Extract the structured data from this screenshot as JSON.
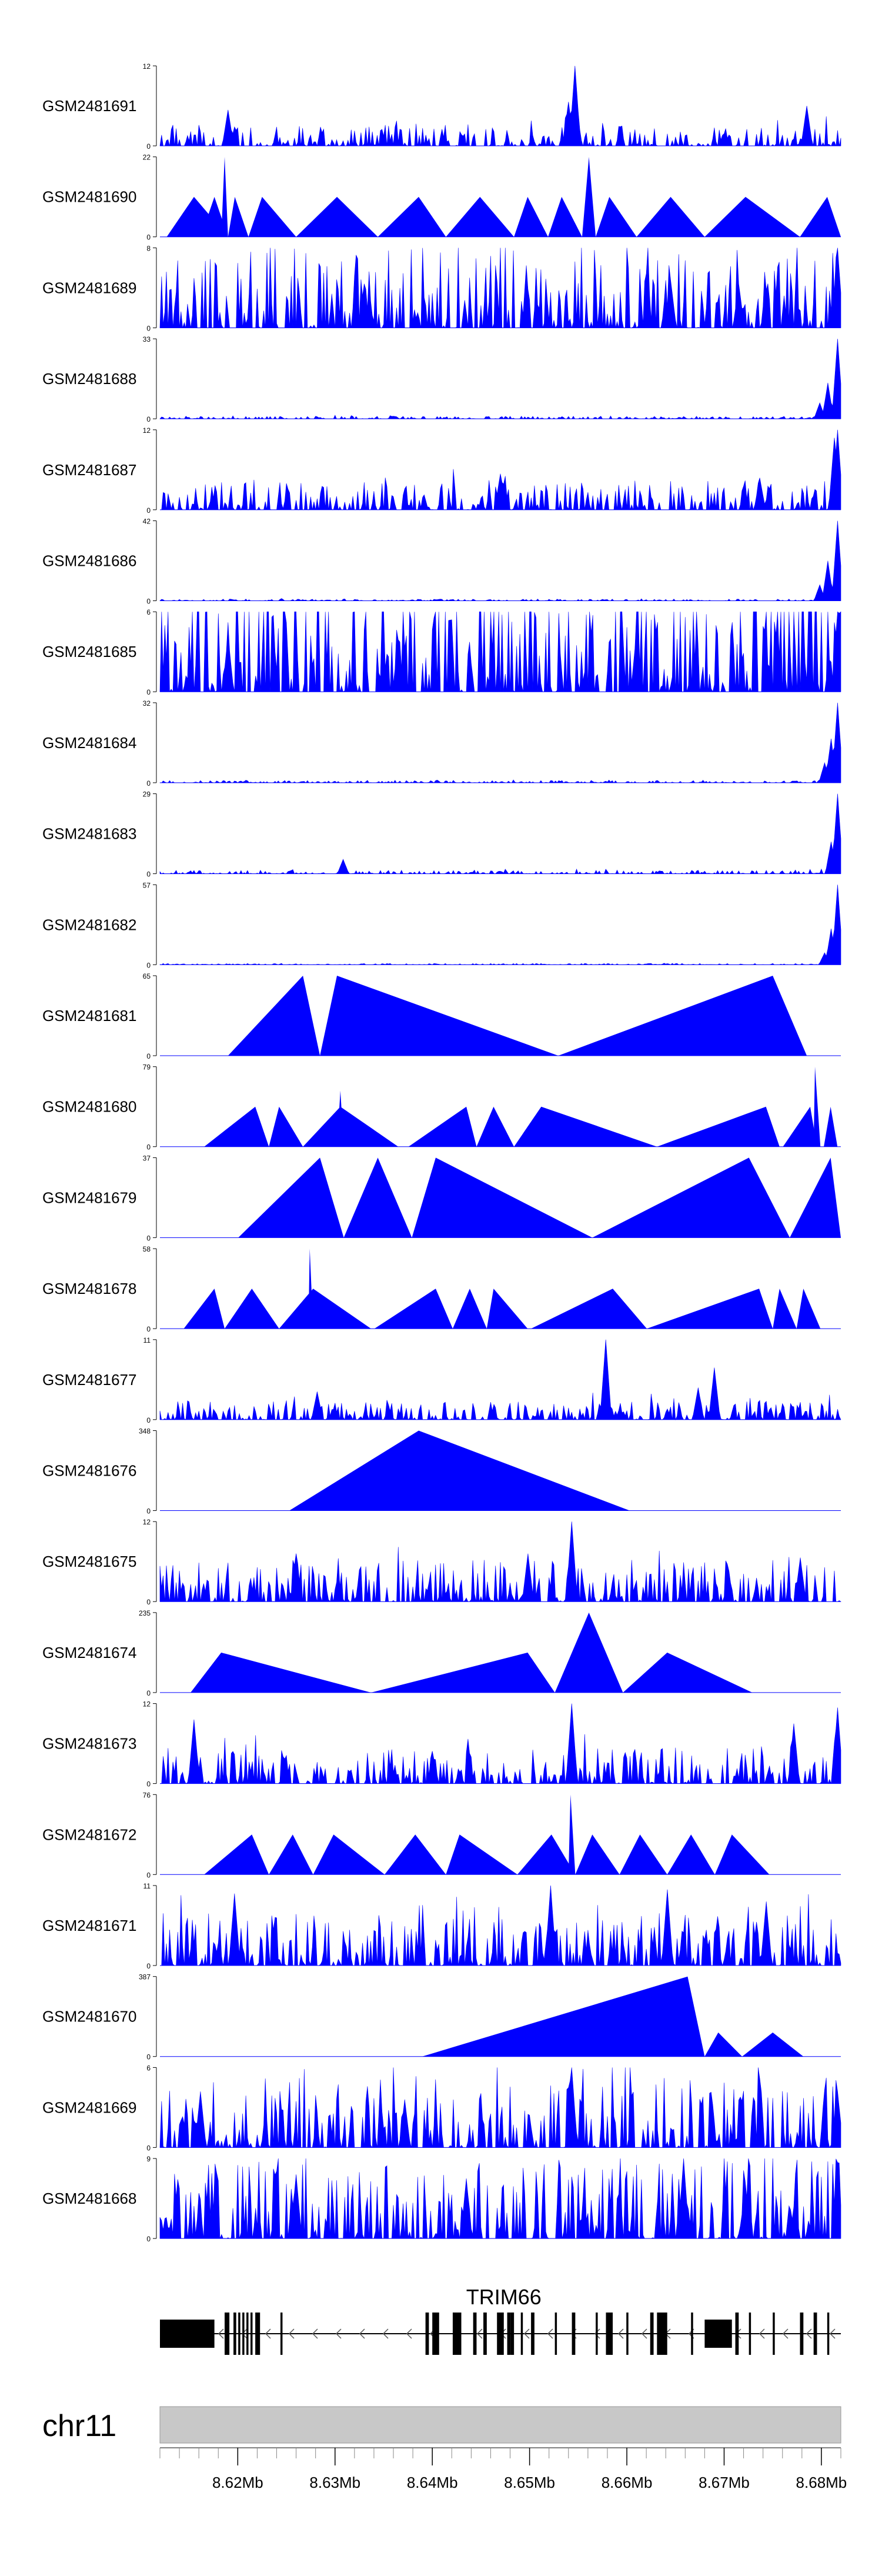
{
  "chart_data": {
    "type": "area",
    "tracks": [
      {
        "name": "GSM2481691",
        "ymax": 12,
        "ymin": 0,
        "pattern": "noise",
        "base": 1.8,
        "spikes": [
          [
            0.61,
            1.0
          ],
          [
            0.6,
            0.55
          ],
          [
            0.95,
            0.5
          ],
          [
            0.1,
            0.45
          ]
        ],
        "start": 0.0,
        "end": 1.0
      },
      {
        "name": "GSM2481690",
        "ymax": 22,
        "ymin": 0,
        "pattern": "triangles",
        "triangles": [
          [
            0.01,
            0.05,
            0.1,
            0.5
          ],
          [
            0.06,
            0.08,
            0.1,
            0.5
          ],
          [
            0.09,
            0.095,
            0.1,
            1.0
          ],
          [
            0.1,
            0.11,
            0.13,
            0.5
          ],
          [
            0.13,
            0.15,
            0.2,
            0.5
          ],
          [
            0.2,
            0.26,
            0.32,
            0.5
          ],
          [
            0.32,
            0.38,
            0.42,
            0.5
          ],
          [
            0.42,
            0.47,
            0.52,
            0.5
          ],
          [
            0.52,
            0.54,
            0.57,
            0.5
          ],
          [
            0.57,
            0.59,
            0.62,
            0.5
          ],
          [
            0.62,
            0.63,
            0.64,
            1.0
          ],
          [
            0.64,
            0.66,
            0.7,
            0.5
          ],
          [
            0.7,
            0.75,
            0.8,
            0.5
          ],
          [
            0.8,
            0.86,
            0.94,
            0.5
          ],
          [
            0.94,
            0.98,
            1.0,
            0.5
          ]
        ],
        "start": 0.0,
        "end": 1.0
      },
      {
        "name": "GSM2481689",
        "ymax": 8,
        "ymin": 0,
        "pattern": "noise",
        "base": 4.5,
        "spikes": [
          [
            0.995,
            1.0
          ],
          [
            0.75,
            0.6
          ],
          [
            0.3,
            0.55
          ],
          [
            0.85,
            0.55
          ]
        ],
        "start": 0.0,
        "end": 1.0
      },
      {
        "name": "GSM2481688",
        "ymax": 33,
        "ymin": 0,
        "pattern": "noise",
        "base": 0.6,
        "spikes": [
          [
            0.995,
            1.0
          ],
          [
            0.98,
            0.45
          ],
          [
            0.97,
            0.2
          ]
        ],
        "start": 0.0,
        "end": 1.0
      },
      {
        "name": "GSM2481687",
        "ymax": 12,
        "ymin": 0,
        "pattern": "noise",
        "base": 2.5,
        "spikes": [
          [
            0.995,
            1.0
          ],
          [
            0.99,
            0.9
          ],
          [
            0.5,
            0.45
          ],
          [
            0.88,
            0.4
          ]
        ],
        "start": 0.0,
        "end": 1.0
      },
      {
        "name": "GSM2481686",
        "ymax": 42,
        "ymin": 0,
        "pattern": "noise",
        "base": 0.5,
        "spikes": [
          [
            0.995,
            1.0
          ],
          [
            0.98,
            0.5
          ],
          [
            0.97,
            0.2
          ]
        ],
        "start": 0.0,
        "end": 1.0
      },
      {
        "name": "GSM2481685",
        "ymax": 6,
        "ymin": 0,
        "pattern": "noise",
        "base": 5.0,
        "spikes": [
          [
            0.995,
            1.0
          ],
          [
            0.1,
            0.7
          ],
          [
            0.7,
            0.75
          ],
          [
            0.35,
            0.65
          ]
        ],
        "start": 0.0,
        "end": 1.0
      },
      {
        "name": "GSM2481684",
        "ymax": 32,
        "ymin": 0,
        "pattern": "noise",
        "base": 0.5,
        "spikes": [
          [
            0.995,
            1.0
          ],
          [
            0.985,
            0.55
          ],
          [
            0.975,
            0.25
          ]
        ],
        "start": 0.0,
        "end": 1.0
      },
      {
        "name": "GSM2481683",
        "ymax": 29,
        "ymin": 0,
        "pattern": "noise",
        "base": 0.7,
        "spikes": [
          [
            0.995,
            1.0
          ],
          [
            0.985,
            0.4
          ],
          [
            0.27,
            0.18
          ]
        ],
        "start": 0.0,
        "end": 1.0
      },
      {
        "name": "GSM2481682",
        "ymax": 57,
        "ymin": 0,
        "pattern": "noise",
        "base": 0.5,
        "spikes": [
          [
            0.995,
            1.0
          ],
          [
            0.985,
            0.45
          ],
          [
            0.975,
            0.15
          ]
        ],
        "start": 0.0,
        "end": 1.0
      },
      {
        "name": "GSM2481681",
        "ymax": 65,
        "ymin": 0,
        "pattern": "triangles",
        "triangles": [
          [
            0.1,
            0.21,
            0.235,
            1.0
          ],
          [
            0.235,
            0.26,
            0.585,
            1.0
          ],
          [
            0.585,
            0.9,
            0.95,
            1.0
          ]
        ],
        "start": 0.0,
        "end": 1.0
      },
      {
        "name": "GSM2481680",
        "ymax": 79,
        "ymin": 0,
        "pattern": "triangles",
        "triangles": [
          [
            0.065,
            0.14,
            0.16,
            0.5
          ],
          [
            0.16,
            0.175,
            0.21,
            0.5
          ],
          [
            0.21,
            0.265,
            0.35,
            0.5
          ],
          [
            0.26,
            0.265,
            0.27,
            0.7
          ],
          [
            0.365,
            0.45,
            0.465,
            0.5
          ],
          [
            0.465,
            0.49,
            0.52,
            0.5
          ],
          [
            0.52,
            0.56,
            0.73,
            0.5
          ],
          [
            0.73,
            0.89,
            0.91,
            0.5
          ],
          [
            0.915,
            0.955,
            0.965,
            0.5
          ],
          [
            0.96,
            0.962,
            0.97,
            1.0
          ],
          [
            0.975,
            0.985,
            0.995,
            0.5
          ]
        ],
        "start": 0.0,
        "end": 1.0
      },
      {
        "name": "GSM2481679",
        "ymax": 37,
        "ymin": 0,
        "pattern": "triangles",
        "triangles": [
          [
            0.115,
            0.235,
            0.27,
            1.0
          ],
          [
            0.27,
            0.32,
            0.37,
            1.0
          ],
          [
            0.37,
            0.405,
            0.635,
            1.0
          ],
          [
            0.635,
            0.865,
            0.925,
            1.0
          ],
          [
            0.925,
            0.985,
            1.0,
            1.0
          ],
          [
            0.86,
            0.865,
            0.87,
            1.0
          ]
        ],
        "start": 0.0,
        "end": 1.0
      },
      {
        "name": "GSM2481678",
        "ymax": 58,
        "ymin": 0,
        "pattern": "triangles",
        "triangles": [
          [
            0.035,
            0.08,
            0.095,
            0.5
          ],
          [
            0.095,
            0.135,
            0.175,
            0.5
          ],
          [
            0.175,
            0.225,
            0.31,
            0.5
          ],
          [
            0.218,
            0.22,
            0.225,
            1.0
          ],
          [
            0.315,
            0.405,
            0.43,
            0.5
          ],
          [
            0.43,
            0.455,
            0.48,
            0.5
          ],
          [
            0.48,
            0.49,
            0.54,
            0.5
          ],
          [
            0.545,
            0.665,
            0.715,
            0.5
          ],
          [
            0.715,
            0.88,
            0.9,
            0.5
          ],
          [
            0.9,
            0.91,
            0.935,
            0.5
          ],
          [
            0.935,
            0.945,
            0.97,
            0.5
          ]
        ],
        "start": 0.0,
        "end": 1.0
      },
      {
        "name": "GSM2481677",
        "ymax": 11,
        "ymin": 0,
        "pattern": "noise",
        "base": 1.5,
        "spikes": [
          [
            0.655,
            1.0
          ],
          [
            0.815,
            0.65
          ],
          [
            0.23,
            0.35
          ],
          [
            0.79,
            0.4
          ]
        ],
        "start": 0.0,
        "end": 1.0
      },
      {
        "name": "GSM2481676",
        "ymax": 348,
        "ymin": 0,
        "pattern": "triangles",
        "triangles": [
          [
            0.19,
            0.38,
            0.69,
            1.0
          ]
        ],
        "start": 0.0,
        "end": 1.0
      },
      {
        "name": "GSM2481675",
        "ymax": 12,
        "ymin": 0,
        "pattern": "noise",
        "base": 3.5,
        "spikes": [
          [
            0.605,
            1.0
          ],
          [
            0.2,
            0.6
          ],
          [
            0.54,
            0.6
          ],
          [
            0.94,
            0.55
          ]
        ],
        "start": 0.0,
        "end": 1.0
      },
      {
        "name": "GSM2481674",
        "ymax": 235,
        "ymin": 0,
        "pattern": "triangles",
        "triangles": [
          [
            0.045,
            0.09,
            0.31,
            0.5
          ],
          [
            0.31,
            0.54,
            0.58,
            0.5
          ],
          [
            0.58,
            0.63,
            0.68,
            1.0
          ],
          [
            0.68,
            0.745,
            0.87,
            0.5
          ]
        ],
        "start": 0.0,
        "end": 1.0
      },
      {
        "name": "GSM2481673",
        "ymax": 12,
        "ymin": 0,
        "pattern": "noise",
        "base": 3.0,
        "spikes": [
          [
            0.605,
            1.0
          ],
          [
            0.995,
            0.95
          ],
          [
            0.05,
            0.8
          ],
          [
            0.93,
            0.75
          ]
        ],
        "start": 0.0,
        "end": 1.0
      },
      {
        "name": "GSM2481672",
        "ymax": 76,
        "ymin": 0,
        "pattern": "triangles",
        "triangles": [
          [
            0.065,
            0.135,
            0.16,
            0.5
          ],
          [
            0.16,
            0.195,
            0.225,
            0.5
          ],
          [
            0.225,
            0.255,
            0.33,
            0.5
          ],
          [
            0.33,
            0.375,
            0.42,
            0.5
          ],
          [
            0.42,
            0.44,
            0.525,
            0.5
          ],
          [
            0.525,
            0.575,
            0.61,
            0.5
          ],
          [
            0.6,
            0.603,
            0.61,
            1.0
          ],
          [
            0.61,
            0.635,
            0.675,
            0.5
          ],
          [
            0.675,
            0.705,
            0.745,
            0.5
          ],
          [
            0.745,
            0.78,
            0.815,
            0.5
          ],
          [
            0.815,
            0.84,
            0.895,
            0.5
          ]
        ],
        "start": 0.0,
        "end": 1.0
      },
      {
        "name": "GSM2481671",
        "ymax": 11,
        "ymin": 0,
        "pattern": "noise",
        "base": 4.0,
        "spikes": [
          [
            0.575,
            1.0
          ],
          [
            0.745,
            0.95
          ],
          [
            0.11,
            0.9
          ],
          [
            0.89,
            0.8
          ]
        ],
        "start": 0.0,
        "end": 1.0
      },
      {
        "name": "GSM2481670",
        "ymax": 387,
        "ymin": 0,
        "pattern": "triangles",
        "triangles": [
          [
            0.385,
            0.775,
            0.8,
            1.0
          ],
          [
            0.8,
            0.82,
            0.855,
            0.3
          ],
          [
            0.855,
            0.9,
            0.945,
            0.3
          ]
        ],
        "start": 0.0,
        "end": 1.0
      },
      {
        "name": "GSM2481669",
        "ymax": 6,
        "ymin": 0,
        "pattern": "noise",
        "base": 3.0,
        "spikes": [
          [
            0.605,
            1.0
          ],
          [
            0.995,
            0.7
          ],
          [
            0.06,
            0.7
          ],
          [
            0.36,
            0.6
          ]
        ],
        "start": 0.0,
        "end": 1.0
      },
      {
        "name": "GSM2481668",
        "ymax": 9,
        "ymin": 0,
        "pattern": "noise",
        "base": 5.0,
        "spikes": [
          [
            0.77,
            1.0
          ],
          [
            0.995,
            0.95
          ],
          [
            0.2,
            0.8
          ],
          [
            0.45,
            0.75
          ]
        ],
        "start": 0.0,
        "end": 1.0
      }
    ],
    "gene": {
      "name": "TRIM66",
      "strand": "-",
      "exons": [
        [
          0.0,
          0.08
        ],
        [
          0.095,
          0.102
        ],
        [
          0.108,
          0.112
        ],
        [
          0.115,
          0.118
        ],
        [
          0.121,
          0.124
        ],
        [
          0.127,
          0.13
        ],
        [
          0.133,
          0.136
        ],
        [
          0.14,
          0.147
        ],
        [
          0.177,
          0.18
        ],
        [
          0.39,
          0.395
        ],
        [
          0.4,
          0.41
        ],
        [
          0.43,
          0.44
        ],
        [
          0.44,
          0.44
        ],
        [
          0.46,
          0.465
        ],
        [
          0.475,
          0.48
        ],
        [
          0.495,
          0.5
        ],
        [
          0.5,
          0.505
        ],
        [
          0.51,
          0.515
        ],
        [
          0.515,
          0.52
        ],
        [
          0.53,
          0.533
        ],
        [
          0.545,
          0.55
        ],
        [
          0.58,
          0.583
        ],
        [
          0.605,
          0.61
        ],
        [
          0.64,
          0.643
        ],
        [
          0.655,
          0.665
        ],
        [
          0.685,
          0.688
        ],
        [
          0.72,
          0.725
        ],
        [
          0.73,
          0.745
        ],
        [
          0.78,
          0.783
        ],
        [
          0.8,
          0.84
        ],
        [
          0.845,
          0.85
        ],
        [
          0.865,
          0.868
        ],
        [
          0.9,
          0.903
        ],
        [
          0.94,
          0.945
        ],
        [
          0.96,
          0.965
        ],
        [
          0.98,
          0.983
        ]
      ]
    },
    "chromosome": "chr11",
    "xaxis": {
      "min": 8.612,
      "max": 8.682,
      "ticks": [
        8.62,
        8.63,
        8.64,
        8.65,
        8.66,
        8.67,
        8.68
      ],
      "tick_labels": [
        "8.62Mb",
        "8.63Mb",
        "8.64Mb",
        "8.65Mb",
        "8.66Mb",
        "8.67Mb",
        "8.68Mb"
      ]
    },
    "colors": {
      "fill": "#0000ff",
      "ideogram": "#c8c8c8",
      "gene": "#000000"
    }
  }
}
